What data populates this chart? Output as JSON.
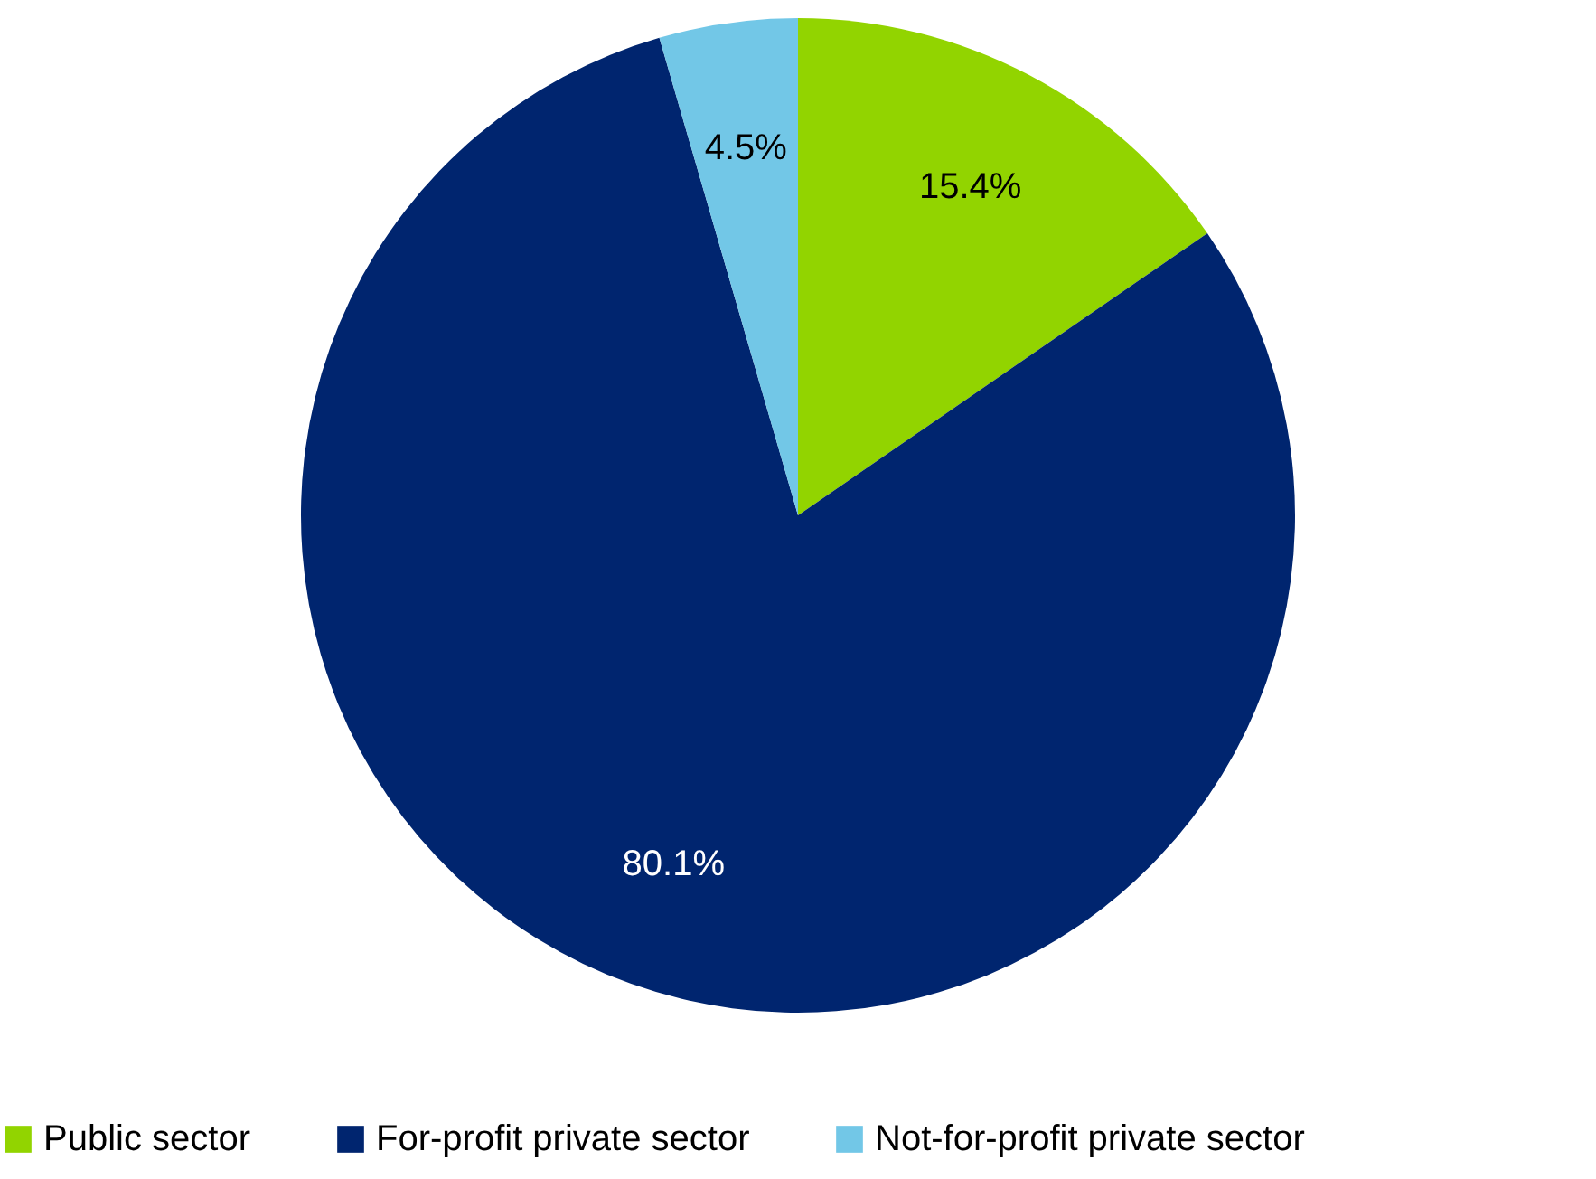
{
  "chart_data": {
    "type": "pie",
    "categories": [
      "Public sector",
      "For-profit private sector",
      "Not-for-profit private sector"
    ],
    "values": [
      15.4,
      80.1,
      4.5
    ],
    "colors": [
      "#92d400",
      "#00256f",
      "#72c7e7"
    ],
    "value_labels": [
      "15.4%",
      "80.1%",
      "4.5%"
    ],
    "legend": "bottom"
  }
}
